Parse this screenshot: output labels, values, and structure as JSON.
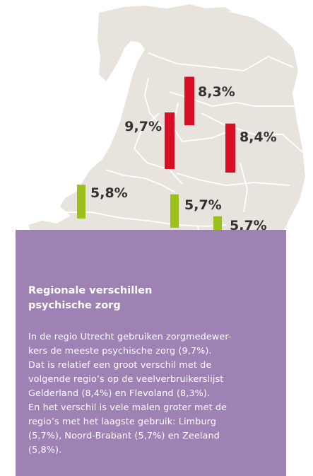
{
  "colors": {
    "map_fill": "#e8e3dd",
    "map_border": "#ffffff",
    "high_bar": "#d90d24",
    "low_bar": "#9cc11b",
    "label_text": "#333333",
    "caption_bg": "#9d82b3",
    "caption_text": "#ffffff"
  },
  "chart_data": {
    "type": "bar",
    "title": "",
    "unit": "%",
    "series": [
      {
        "values": [
          {
            "label": "9,7%",
            "value": 9.7,
            "color_group": "high"
          },
          {
            "label": "8,4%",
            "value": 8.4,
            "color_group": "high"
          },
          {
            "label": "8,3%",
            "value": 8.3,
            "color_group": "high"
          },
          {
            "label": "5,8%",
            "value": 5.8,
            "color_group": "low"
          },
          {
            "label": "5,7%",
            "value": 5.7,
            "color_group": "low"
          },
          {
            "label": "5,7%",
            "value": 5.7,
            "color_group": "low"
          }
        ]
      }
    ]
  },
  "caption": {
    "title_line1": "Regionale verschillen",
    "title_line2": "psychische zorg",
    "body_lines": [
      "In de regio Utrecht gebruiken zorgmedewer-",
      "kers de meeste psychische zorg (9,7%).",
      "Dat is relatief een groot verschil met de",
      "volgende regio’s op de veelverbruikerslijst",
      "Gelderland (8,4%) en Flevoland (8,3%).",
      "En het verschil is vele malen groter met de",
      "regio’s met het laagste gebruik: Limburg",
      "(5,7%), Noord-Brabant (5,7%) en Zeeland",
      "(5,8%)."
    ]
  }
}
